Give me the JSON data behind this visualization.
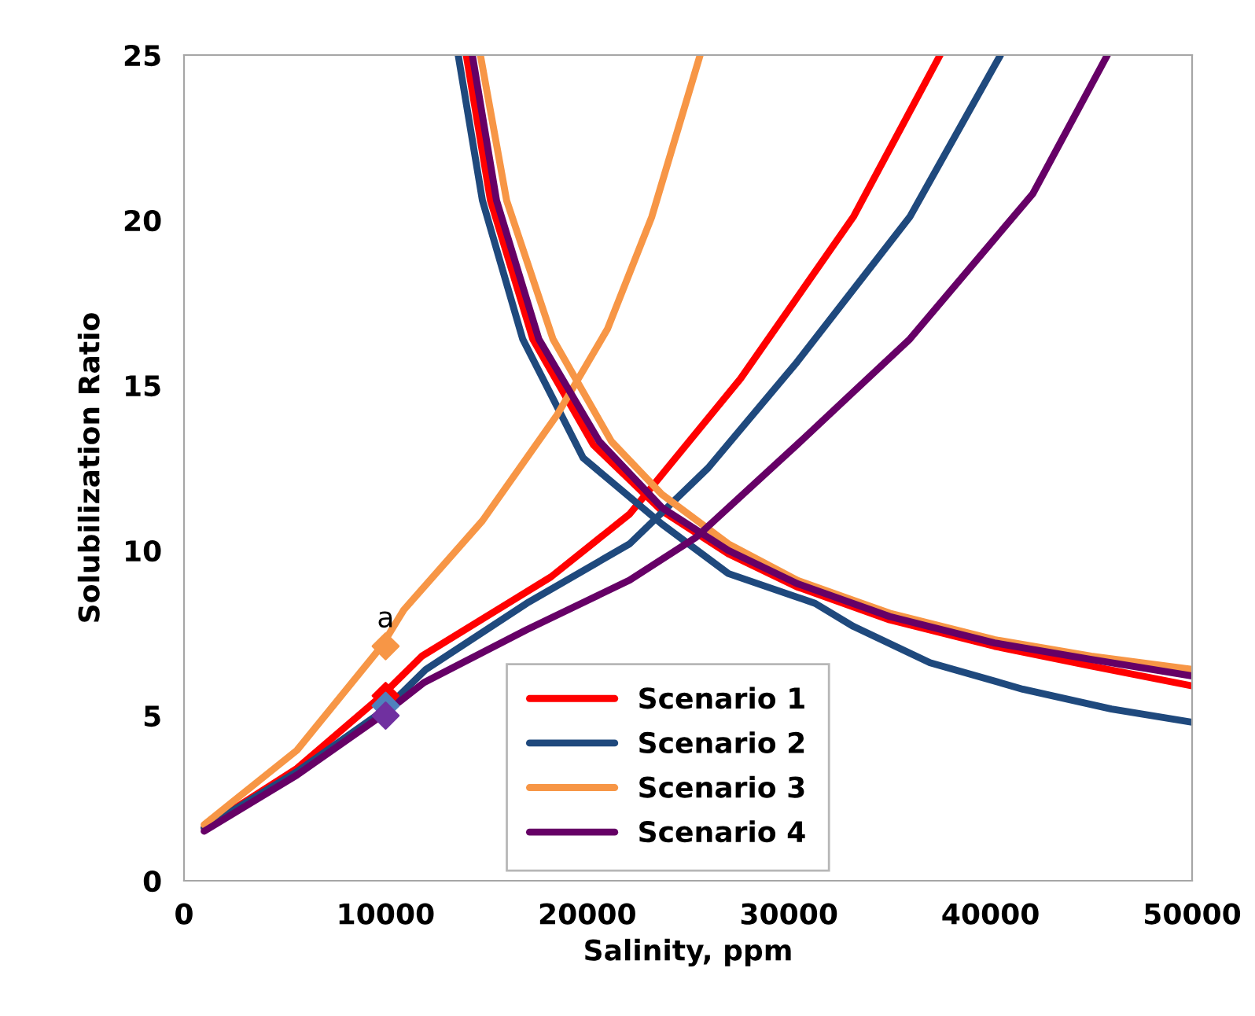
{
  "chart_data": {
    "type": "line",
    "xlabel": "Salinity, ppm",
    "ylabel": "Solubilization Ratio",
    "xlim": [
      0,
      50000
    ],
    "xticks": [
      0,
      10000,
      20000,
      30000,
      40000,
      50000
    ],
    "ylim": [
      0,
      25
    ],
    "yticks": [
      0,
      5,
      10,
      15,
      20,
      25
    ],
    "grid": false,
    "legend": "bottom",
    "line_style": "solid",
    "annotations": [
      {
        "text": "a",
        "x": 10000,
        "y": 7.1
      }
    ],
    "series": [
      {
        "name": "Scenario 1",
        "color": "#ff0000",
        "x": [
          1000,
          5600,
          9800,
          11800,
          18200,
          22100,
          27600,
          33200,
          37500,
          null,
          14000,
          15200,
          17300,
          20300,
          23700,
          27000,
          30400,
          35000,
          40200,
          45000,
          50000
        ],
        "values": [
          1.6,
          3.4,
          5.6,
          6.8,
          9.2,
          11.1,
          15.2,
          20.1,
          25,
          null,
          25,
          20.6,
          16.4,
          13.2,
          11.2,
          9.9,
          8.9,
          7.9,
          7.1,
          6.5,
          5.9
        ]
      },
      {
        "name": "Scenario 2",
        "color": "#1f497d",
        "x": [
          1000,
          5600,
          10000,
          12000,
          17000,
          22100,
          26000,
          30400,
          36000,
          40500,
          null,
          13600,
          14800,
          16800,
          19800,
          23700,
          27000,
          31300,
          33200,
          37000,
          41600,
          46000,
          50000
        ],
        "values": [
          1.6,
          3.3,
          5.2,
          6.4,
          8.4,
          10.2,
          12.5,
          15.7,
          20.1,
          25,
          null,
          25,
          20.6,
          16.4,
          12.8,
          10.8,
          9.3,
          8.4,
          7.7,
          6.6,
          5.8,
          5.2,
          4.8
        ]
      },
      {
        "name": "Scenario 3",
        "color": "#f79646",
        "x": [
          1000,
          5600,
          9800,
          10900,
          14800,
          18500,
          21000,
          23200,
          25600,
          null,
          14700,
          16000,
          18300,
          21200,
          23700,
          27000,
          30400,
          35000,
          40200,
          45000,
          50000
        ],
        "values": [
          1.7,
          3.95,
          7.1,
          8.2,
          10.9,
          14.1,
          16.7,
          20.1,
          25,
          null,
          25,
          20.6,
          16.4,
          13.3,
          11.7,
          10.2,
          9.1,
          8.1,
          7.3,
          6.8,
          6.4
        ]
      },
      {
        "name": "Scenario 4",
        "color": "#660066",
        "x": [
          1000,
          5600,
          9800,
          11900,
          17000,
          22100,
          25400,
          30400,
          36000,
          42100,
          45800,
          null,
          14300,
          15500,
          17600,
          20600,
          23700,
          27000,
          30400,
          35000,
          40200,
          45000,
          50000
        ],
        "values": [
          1.5,
          3.2,
          5.0,
          6.0,
          7.6,
          9.1,
          10.4,
          13.2,
          16.4,
          20.8,
          25,
          null,
          25,
          20.6,
          16.4,
          13.3,
          11.3,
          10.0,
          9.0,
          8.0,
          7.2,
          6.7,
          6.2
        ]
      },
      {
        "type": "scatter",
        "marker": "diamond",
        "color": "#ff0000",
        "x": [
          10000
        ],
        "values": [
          5.6
        ]
      },
      {
        "type": "scatter",
        "marker": "diamond",
        "color": "#4f81bd",
        "x": [
          10000
        ],
        "values": [
          5.3
        ]
      },
      {
        "type": "scatter",
        "marker": "diamond",
        "color": "#f79646",
        "x": [
          10000
        ],
        "values": [
          7.1
        ]
      },
      {
        "type": "scatter",
        "marker": "diamond",
        "color": "#7030a0",
        "x": [
          10000
        ],
        "values": [
          5.0
        ]
      }
    ]
  }
}
